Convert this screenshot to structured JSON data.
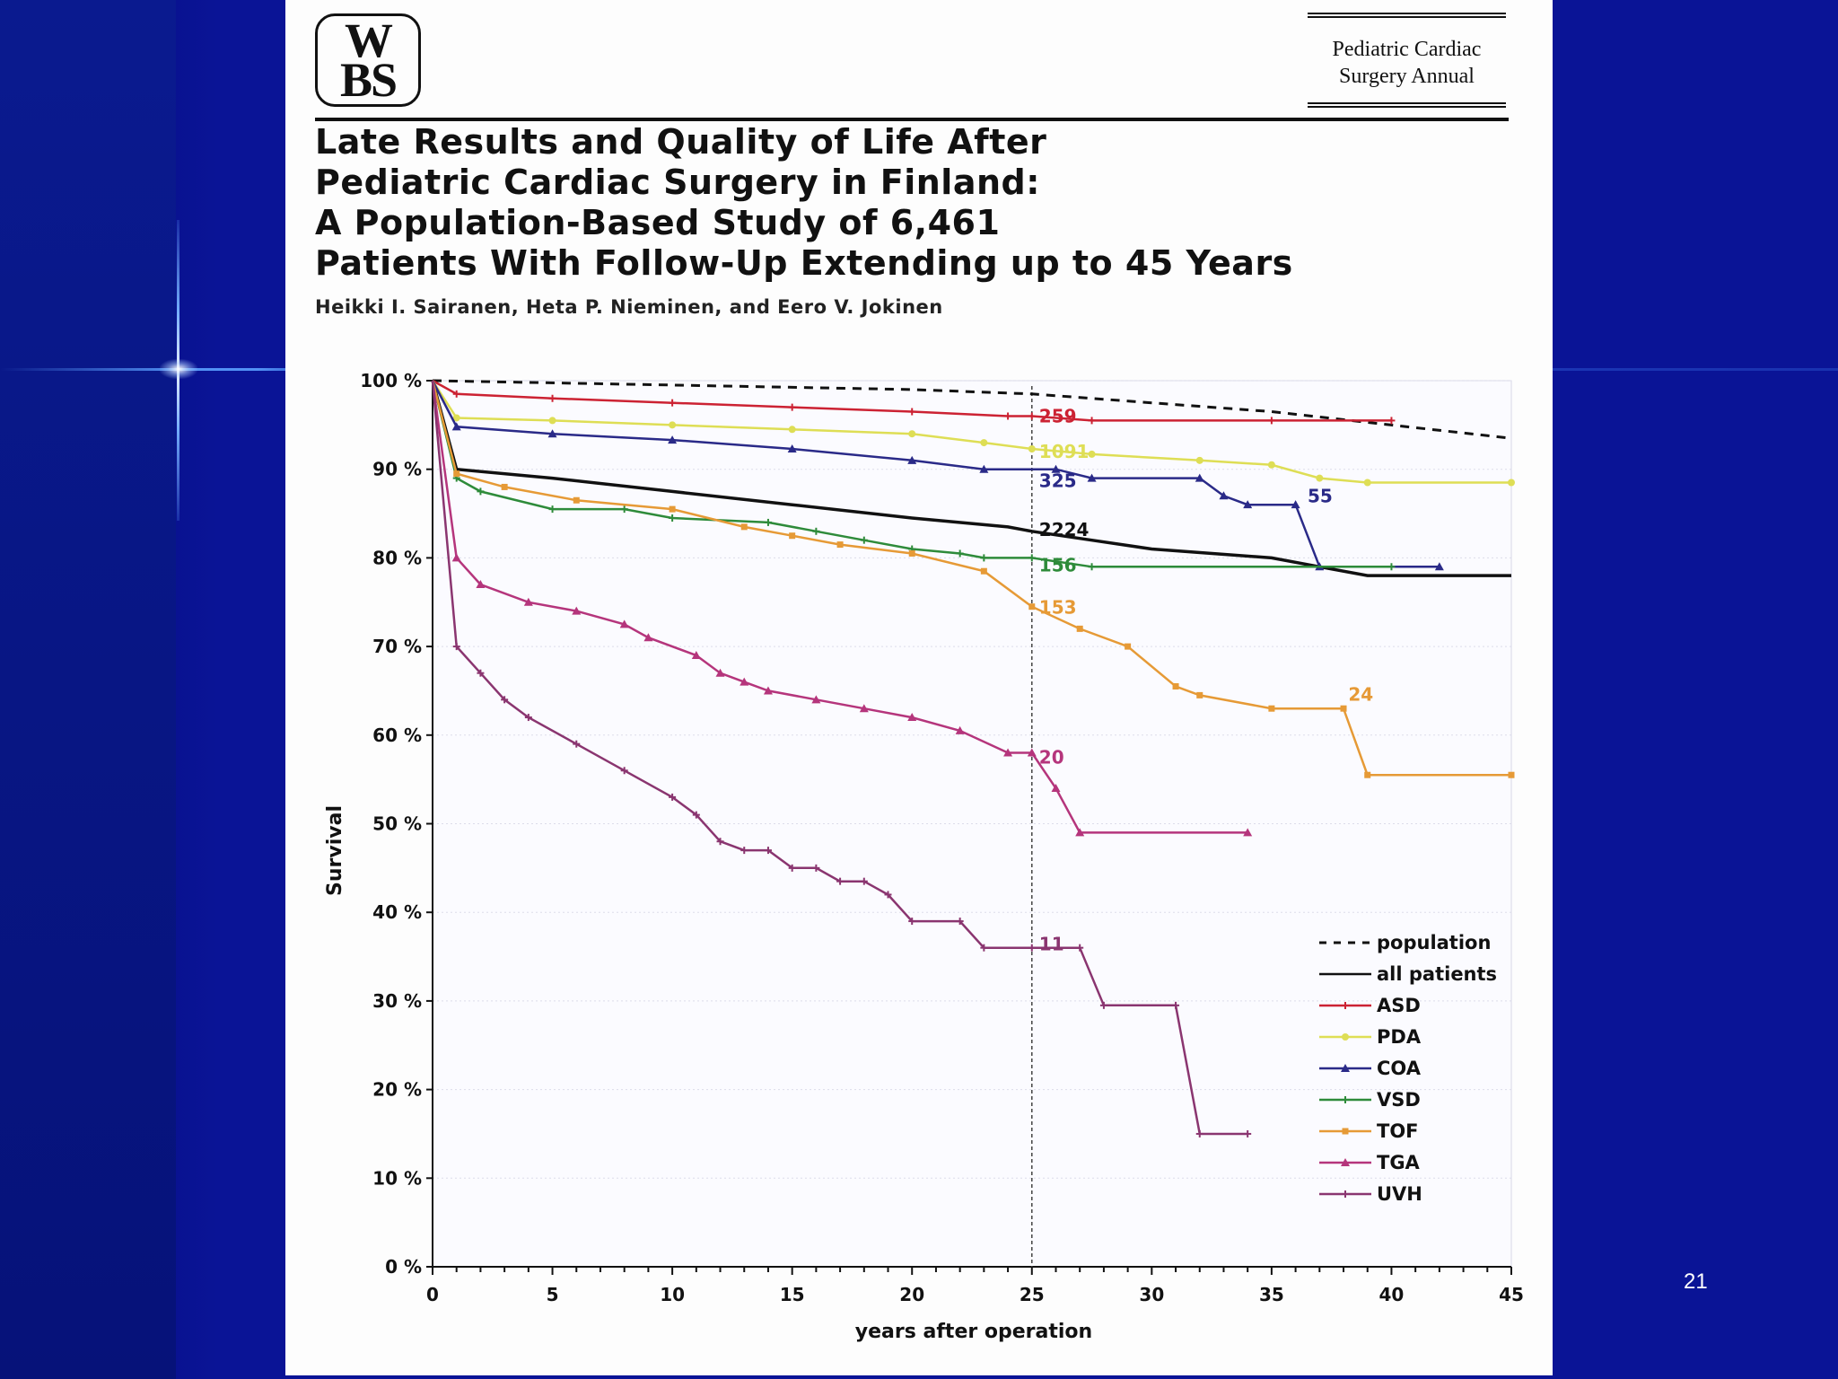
{
  "slide_number": "21",
  "article": {
    "logo_text": [
      "W",
      "B",
      "S"
    ],
    "journal": [
      "Pediatric Cardiac",
      "Surgery Annual"
    ],
    "title_lines": [
      "Late Results and Quality of Life After",
      "Pediatric Cardiac Surgery in Finland:",
      "A Population-Based Study of 6,461",
      "Patients With Follow-Up Extending up to 45 Years"
    ],
    "authors": "Heikki I. Sairanen, Heta P. Nieminen, and Eero V. Jokinen"
  },
  "chart_data": {
    "type": "line",
    "title": "",
    "xlabel": "years after operation",
    "ylabel": "Survival",
    "xlim": [
      0,
      45
    ],
    "ylim": [
      0,
      100
    ],
    "xticks": [
      0,
      5,
      10,
      15,
      20,
      25,
      30,
      35,
      40,
      45
    ],
    "yticks": [
      0,
      10,
      20,
      30,
      40,
      50,
      60,
      70,
      80,
      90,
      100
    ],
    "ytick_labels": [
      "0 %",
      "10 %",
      "20 %",
      "30 %",
      "40 %",
      "50 %",
      "60 %",
      "70 %",
      "80 %",
      "90 %",
      "100 %"
    ],
    "reference_line_x": 25,
    "legend_position": "bottom-right",
    "series": [
      {
        "name": "population",
        "color": "#111111",
        "style": "dashed",
        "marker": "none",
        "points": [
          [
            0,
            100
          ],
          [
            10,
            99.5
          ],
          [
            20,
            99
          ],
          [
            25,
            98.5
          ],
          [
            30,
            97.5
          ],
          [
            35,
            96.5
          ],
          [
            40,
            95
          ],
          [
            45,
            93.5
          ]
        ]
      },
      {
        "name": "all patients",
        "color": "#111111",
        "style": "solid",
        "marker": "none",
        "points": [
          [
            0,
            100
          ],
          [
            1,
            90
          ],
          [
            5,
            89
          ],
          [
            10,
            87.5
          ],
          [
            15,
            86
          ],
          [
            20,
            84.5
          ],
          [
            24,
            83.5
          ],
          [
            25,
            83
          ],
          [
            27.5,
            82
          ],
          [
            30,
            81
          ],
          [
            35,
            80
          ],
          [
            37,
            79
          ],
          [
            39,
            78
          ],
          [
            45,
            78
          ]
        ]
      },
      {
        "name": "ASD",
        "color": "#cc2233",
        "style": "solid",
        "marker": "plus",
        "points": [
          [
            0,
            100
          ],
          [
            1,
            98.5
          ],
          [
            5,
            98
          ],
          [
            10,
            97.5
          ],
          [
            15,
            97
          ],
          [
            20,
            96.5
          ],
          [
            24,
            96
          ],
          [
            25,
            96
          ],
          [
            27.5,
            95.5
          ],
          [
            35,
            95.5
          ],
          [
            40,
            95.5
          ]
        ]
      },
      {
        "name": "PDA",
        "color": "#dede55",
        "style": "solid",
        "marker": "circle",
        "points": [
          [
            0,
            100
          ],
          [
            1,
            95.8
          ],
          [
            5,
            95.5
          ],
          [
            10,
            95
          ],
          [
            15,
            94.5
          ],
          [
            20,
            94
          ],
          [
            23,
            93
          ],
          [
            25,
            92.3
          ],
          [
            27.5,
            91.7
          ],
          [
            32,
            91
          ],
          [
            35,
            90.5
          ],
          [
            37,
            89
          ],
          [
            39,
            88.5
          ],
          [
            45,
            88.5
          ]
        ]
      },
      {
        "name": "COA",
        "color": "#2a2a88",
        "style": "solid",
        "marker": "triangle",
        "points": [
          [
            0,
            100
          ],
          [
            1,
            94.8
          ],
          [
            5,
            94
          ],
          [
            10,
            93.3
          ],
          [
            15,
            92.3
          ],
          [
            20,
            91
          ],
          [
            23,
            90
          ],
          [
            26,
            90
          ],
          [
            27.5,
            89
          ],
          [
            32,
            89
          ],
          [
            33,
            87
          ],
          [
            34,
            86
          ],
          [
            36,
            86
          ],
          [
            37,
            79
          ],
          [
            42,
            79
          ]
        ]
      },
      {
        "name": "VSD",
        "color": "#2e8b3a",
        "style": "solid",
        "marker": "plus",
        "points": [
          [
            0,
            100
          ],
          [
            1,
            89
          ],
          [
            2,
            87.5
          ],
          [
            5,
            85.5
          ],
          [
            8,
            85.5
          ],
          [
            10,
            84.5
          ],
          [
            14,
            84
          ],
          [
            16,
            83
          ],
          [
            18,
            82
          ],
          [
            20,
            81
          ],
          [
            22,
            80.5
          ],
          [
            23,
            80
          ],
          [
            25,
            80
          ],
          [
            27.5,
            79
          ],
          [
            40,
            79
          ]
        ]
      },
      {
        "name": "TOF",
        "color": "#e69a36",
        "style": "solid",
        "marker": "square",
        "points": [
          [
            0,
            100
          ],
          [
            1,
            89.5
          ],
          [
            3,
            88
          ],
          [
            6,
            86.5
          ],
          [
            10,
            85.5
          ],
          [
            13,
            83.5
          ],
          [
            15,
            82.5
          ],
          [
            17,
            81.5
          ],
          [
            20,
            80.5
          ],
          [
            23,
            78.5
          ],
          [
            25,
            74.5
          ],
          [
            27,
            72
          ],
          [
            29,
            70
          ],
          [
            31,
            65.5
          ],
          [
            32,
            64.5
          ],
          [
            35,
            63
          ],
          [
            38,
            63
          ],
          [
            39,
            55.5
          ],
          [
            45,
            55.5
          ]
        ]
      },
      {
        "name": "TGA",
        "color": "#b5357c",
        "style": "solid",
        "marker": "triangle",
        "points": [
          [
            0,
            100
          ],
          [
            1,
            80
          ],
          [
            2,
            77
          ],
          [
            4,
            75
          ],
          [
            6,
            74
          ],
          [
            8,
            72.5
          ],
          [
            9,
            71
          ],
          [
            11,
            69
          ],
          [
            12,
            67
          ],
          [
            13,
            66
          ],
          [
            14,
            65
          ],
          [
            16,
            64
          ],
          [
            18,
            63
          ],
          [
            20,
            62
          ],
          [
            22,
            60.5
          ],
          [
            24,
            58
          ],
          [
            25,
            58
          ],
          [
            26,
            54
          ],
          [
            27,
            49
          ],
          [
            34,
            49
          ]
        ]
      },
      {
        "name": "UVH",
        "color": "#8a3570",
        "style": "solid",
        "marker": "plus",
        "points": [
          [
            0,
            100
          ],
          [
            1,
            70
          ],
          [
            2,
            67
          ],
          [
            3,
            64
          ],
          [
            4,
            62
          ],
          [
            6,
            59
          ],
          [
            8,
            56
          ],
          [
            10,
            53
          ],
          [
            11,
            51
          ],
          [
            12,
            48
          ],
          [
            13,
            47
          ],
          [
            14,
            47
          ],
          [
            15,
            45
          ],
          [
            16,
            45
          ],
          [
            17,
            43.5
          ],
          [
            18,
            43.5
          ],
          [
            19,
            42
          ],
          [
            20,
            39
          ],
          [
            22,
            39
          ],
          [
            23,
            36
          ],
          [
            25,
            36
          ],
          [
            27,
            36
          ],
          [
            28,
            29.5
          ],
          [
            31,
            29.5
          ],
          [
            32,
            15
          ],
          [
            34,
            15
          ]
        ]
      }
    ],
    "annotations": [
      {
        "text": "259",
        "x": 25.3,
        "y": 96,
        "color": "#cc2233"
      },
      {
        "text": "1091",
        "x": 25.3,
        "y": 92,
        "color": "#dede55"
      },
      {
        "text": "325",
        "x": 25.3,
        "y": 88.7,
        "color": "#2a2a88"
      },
      {
        "text": "55",
        "x": 36.5,
        "y": 87,
        "color": "#2a2a88"
      },
      {
        "text": "2224",
        "x": 25.3,
        "y": 83.2,
        "color": "#111111"
      },
      {
        "text": "156",
        "x": 25.3,
        "y": 79.2,
        "color": "#2e8b3a"
      },
      {
        "text": "153",
        "x": 25.3,
        "y": 74.4,
        "color": "#e69a36"
      },
      {
        "text": "24",
        "x": 38.2,
        "y": 64.6,
        "color": "#e69a36"
      },
      {
        "text": "20",
        "x": 25.3,
        "y": 57.5,
        "color": "#b5357c"
      },
      {
        "text": "11",
        "x": 25.3,
        "y": 36.4,
        "color": "#8a3570"
      }
    ]
  }
}
